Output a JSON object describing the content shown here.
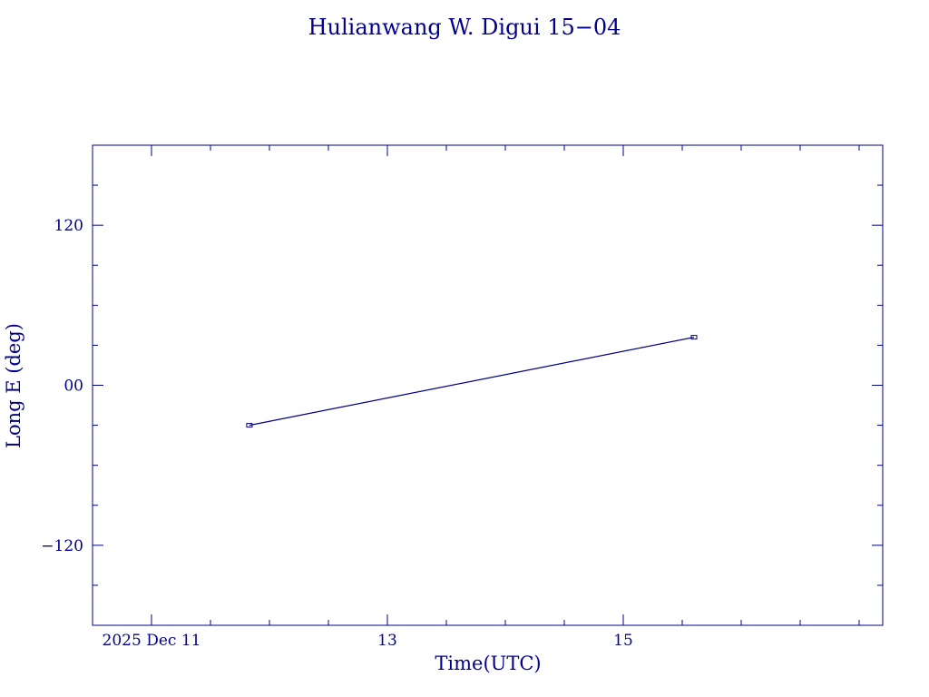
{
  "colors": {
    "ink": "#00008b",
    "background": "#ffffff"
  },
  "chart_data": {
    "type": "line",
    "title": "Hulianwang W. Digui 15−04",
    "xlabel": "Time(UTC)",
    "ylabel": "Long E (deg)",
    "x_unit": "day of December 2025",
    "xlim": [
      10.5,
      17.2
    ],
    "ylim": [
      -180,
      180
    ],
    "grid": false,
    "x_ticks": [
      {
        "value": 11,
        "label": "2025 Dec 11"
      },
      {
        "value": 13,
        "label": "13"
      },
      {
        "value": 15,
        "label": "15"
      }
    ],
    "x_minor_step": 0.5,
    "y_ticks": [
      {
        "value": 120,
        "label": "120"
      },
      {
        "value": 0,
        "label": "00"
      },
      {
        "value": -120,
        "label": "−120"
      }
    ],
    "y_minor_step": 30,
    "series": [
      {
        "marker": "square",
        "points": [
          {
            "x": 11.83,
            "y": -30
          },
          {
            "x": 15.6,
            "y": 36
          }
        ]
      }
    ]
  }
}
